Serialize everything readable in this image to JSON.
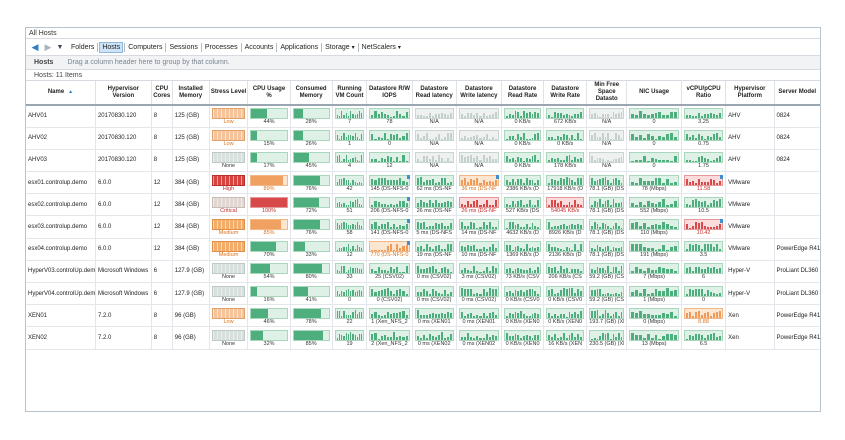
{
  "window": {
    "title": "All Hosts"
  },
  "toolbar": {
    "tabs": [
      {
        "label": "Folders",
        "active": false,
        "dropdown": false
      },
      {
        "label": "Hosts",
        "active": true,
        "dropdown": false
      },
      {
        "label": "Computers",
        "active": false,
        "dropdown": false
      },
      {
        "label": "Sessions",
        "active": false,
        "dropdown": false
      },
      {
        "label": "Processes",
        "active": false,
        "dropdown": false
      },
      {
        "label": "Accounts",
        "active": false,
        "dropdown": false
      },
      {
        "label": "Applications",
        "active": false,
        "dropdown": false
      },
      {
        "label": "Storage",
        "active": false,
        "dropdown": true
      },
      {
        "label": "NetScalers",
        "active": false,
        "dropdown": true
      }
    ]
  },
  "groupbar": {
    "title": "Hosts",
    "hint": "Drag a column header here to group by that column."
  },
  "count": "Hosts: 11 Items",
  "columns": [
    "Name",
    "Hypervisor Version",
    "CPU Cores",
    "Installed Memory",
    "Stress Level",
    "CPU Usage %",
    "Consumed Memory",
    "Running VM Count",
    "Datastore R/W IOPS",
    "Datastore Read latency",
    "Datastore Write latency",
    "Datastore Read Rate",
    "Datastore Write Rate",
    "Min Free Space Datasto",
    "NIC Usage",
    "vCPU/pCPU Ratio",
    "Hypervisor Platform",
    "Server Model"
  ],
  "rows": [
    {
      "name": "AHV01",
      "version": "20170830.120",
      "cores": "8",
      "memory": "125 (GB)",
      "stress": "Low",
      "stress_level": "low",
      "cpu": "44%",
      "cpu_pct": 44,
      "consumed": "28%",
      "consumed_pct": 28,
      "vms": "7",
      "iops": "78",
      "read_lat": "N/A",
      "write_lat": "N/A",
      "read_rate": "0 KB/s",
      "write_rate": "672 KB/s",
      "min_free": "N/A",
      "nic": "0",
      "ratio": "3.25",
      "ratio_level": "normal",
      "platform": "AHV",
      "model": "0824"
    },
    {
      "name": "AHV02",
      "version": "20170830.120",
      "cores": "8",
      "memory": "125 (GB)",
      "stress": "Low",
      "stress_level": "low",
      "cpu": "15%",
      "cpu_pct": 15,
      "consumed": "26%",
      "consumed_pct": 26,
      "vms": "1",
      "iops": "0",
      "read_lat": "N/A",
      "write_lat": "N/A",
      "read_rate": "0 KB/s",
      "write_rate": "0 KB/s",
      "min_free": "N/A",
      "nic": "0",
      "ratio": "0.75",
      "ratio_level": "normal",
      "platform": "AHV",
      "model": "0824"
    },
    {
      "name": "AHV03",
      "version": "20170830.120",
      "cores": "8",
      "memory": "125 (GB)",
      "stress": "None",
      "stress_level": "none",
      "cpu": "17%",
      "cpu_pct": 17,
      "consumed": "45%",
      "consumed_pct": 45,
      "vms": "4",
      "iops": "12",
      "read_lat": "N/A",
      "write_lat": "N/A",
      "read_rate": "0 KB/s",
      "write_rate": "178 KB/s",
      "min_free": "N/A",
      "nic": "0",
      "ratio": "1.75",
      "ratio_level": "normal",
      "platform": "AHV",
      "model": "0824"
    },
    {
      "name": "esx01.controlup.demo",
      "version": "6.0.0",
      "cores": "12",
      "memory": "384 (GB)",
      "stress": "High",
      "stress_level": "high",
      "cpu": "89%",
      "cpu_pct": 89,
      "consumed": "76%",
      "consumed_pct": 76,
      "vms": "42",
      "iops": "145 (DS-NFS-0",
      "read_lat": "62 ms (DS-NF",
      "write_lat": "36 ms (DS-NF",
      "read_rate": "2386 KB/s (D",
      "write_rate": "17918 KB/s (D",
      "min_free": "78.1 (GB) (DS-I",
      "nic": "78 (Mbps)",
      "ratio": "11.58",
      "ratio_level": "high",
      "platform": "VMware",
      "model": ""
    },
    {
      "name": "esx02.controlup.demo",
      "version": "6.0.0",
      "cores": "12",
      "memory": "384 (GB)",
      "stress": "Critical",
      "stress_level": "critical",
      "cpu": "100%",
      "cpu_pct": 100,
      "consumed": "72%",
      "consumed_pct": 72,
      "vms": "51",
      "iops": "206 (DS-NFS-0",
      "read_lat": "26 ms (DS-NF",
      "write_lat": "26 ms (DS-NF",
      "read_rate": "527 KB/s (DS",
      "write_rate": "54045 KB/s",
      "min_free": "78.1 (GB) (DS-I",
      "nic": "552 (Mbps)",
      "ratio": "10.5",
      "ratio_level": "normal",
      "platform": "VMware",
      "model": ""
    },
    {
      "name": "esx03.controlup.demo",
      "version": "6.0.0",
      "cores": "12",
      "memory": "384 (GB)",
      "stress": "Medium",
      "stress_level": "medium",
      "cpu": "85%",
      "cpu_pct": 85,
      "consumed": "76%",
      "consumed_pct": 76,
      "vms": "58",
      "iops": "141 (DS-NFS-0",
      "read_lat": "5 ms (DS-NFS",
      "write_lat": "14 ms (DS-NF",
      "read_rate": "4632 KB/s (D",
      "write_rate": "8926 KB/s (D",
      "min_free": "78.1 (GB) (DS-I",
      "nic": "110 (Mbps)",
      "ratio": "10.42",
      "ratio_level": "high",
      "platform": "VMware",
      "model": ""
    },
    {
      "name": "esx04.controlup.demo",
      "version": "6.0.0",
      "cores": "12",
      "memory": "384 (GB)",
      "stress": "Medium",
      "stress_level": "medium",
      "cpu": "70%",
      "cpu_pct": 70,
      "consumed": "33%",
      "consumed_pct": 33,
      "vms": "12",
      "iops": "770 (DS-NFS-0",
      "read_lat": "19 ms (DS-NF",
      "write_lat": "10 ms (DS-NF",
      "read_rate": "1369 KB/s (D",
      "write_rate": "2136 KB/s (D",
      "min_free": "78.1 (GB) (DS-I",
      "nic": "191 (Mbps)",
      "ratio": "3.5",
      "ratio_level": "normal",
      "platform": "VMware",
      "model": "PowerEdge R410"
    },
    {
      "name": "HyperV03.controlUp.demo",
      "version": "Microsoft Windows",
      "cores": "6",
      "memory": "127.9 (GB)",
      "stress": "None",
      "stress_level": "none",
      "cpu": "54%",
      "cpu_pct": 54,
      "consumed": "80%",
      "consumed_pct": 80,
      "vms": "33",
      "iops": "25 (CSV02)",
      "read_lat": "0 ms (CSV02)",
      "write_lat": "3 ms (CSV02)",
      "read_rate": "73 KB/s (CSV",
      "write_rate": "206 KB/s (CS",
      "min_free": "59.2 (GB) (CSV",
      "nic": "7 (Mbps)",
      "ratio": "6",
      "ratio_level": "normal",
      "platform": "Hyper-V",
      "model": "ProLiant DL360 G"
    },
    {
      "name": "HyperV04.controlUp.demo",
      "version": "Microsoft Windows",
      "cores": "6",
      "memory": "127.9 (GB)",
      "stress": "None",
      "stress_level": "none",
      "cpu": "16%",
      "cpu_pct": 16,
      "consumed": "41%",
      "consumed_pct": 41,
      "vms": "0",
      "iops": "0 (CSV02)",
      "read_lat": "0 ms (CSV02)",
      "write_lat": "0 ms (CSV02)",
      "read_rate": "0 KB/s (CSV0",
      "write_rate": "0 KB/s (CSV0",
      "min_free": "59.2 (GB) (CSV",
      "nic": "1 (Mbps)",
      "ratio": "0",
      "ratio_level": "normal",
      "platform": "Hyper-V",
      "model": "ProLiant DL360 G"
    },
    {
      "name": "XEN01",
      "version": "7.2.0",
      "cores": "8",
      "memory": "96 (GB)",
      "stress": "Low",
      "stress_level": "low",
      "cpu": "46%",
      "cpu_pct": 46,
      "consumed": "78%",
      "consumed_pct": 78,
      "vms": "22",
      "iops": "1 (Xen_NFS_2",
      "read_lat": "0 ms (XEN01",
      "write_lat": "0 ms (XEN01",
      "read_rate": "0 KB/s (XEN0",
      "write_rate": "0 KB/s (XEN0",
      "min_free": "193.7 (GB) (XE",
      "nic": "0 (Mbps)",
      "ratio": "8.88",
      "ratio_level": "medium",
      "platform": "Xen",
      "model": "PowerEdge R410"
    },
    {
      "name": "XEN02",
      "version": "7.2.0",
      "cores": "8",
      "memory": "96 (GB)",
      "stress": "None",
      "stress_level": "none",
      "cpu": "32%",
      "cpu_pct": 32,
      "consumed": "85%",
      "consumed_pct": 85,
      "vms": "19",
      "iops": "2 (Xen_NFS_2",
      "read_lat": "0 ms (XEN02",
      "write_lat": "0 ms (XEN02",
      "read_rate": "0 KB/s (XEN0",
      "write_rate": "16 KB/s (XEN",
      "min_free": "230.5 (GB) (XE",
      "nic": "13 (Mbps)",
      "ratio": "6.5",
      "ratio_level": "normal",
      "platform": "Xen",
      "model": "PowerEdge R410"
    }
  ]
}
